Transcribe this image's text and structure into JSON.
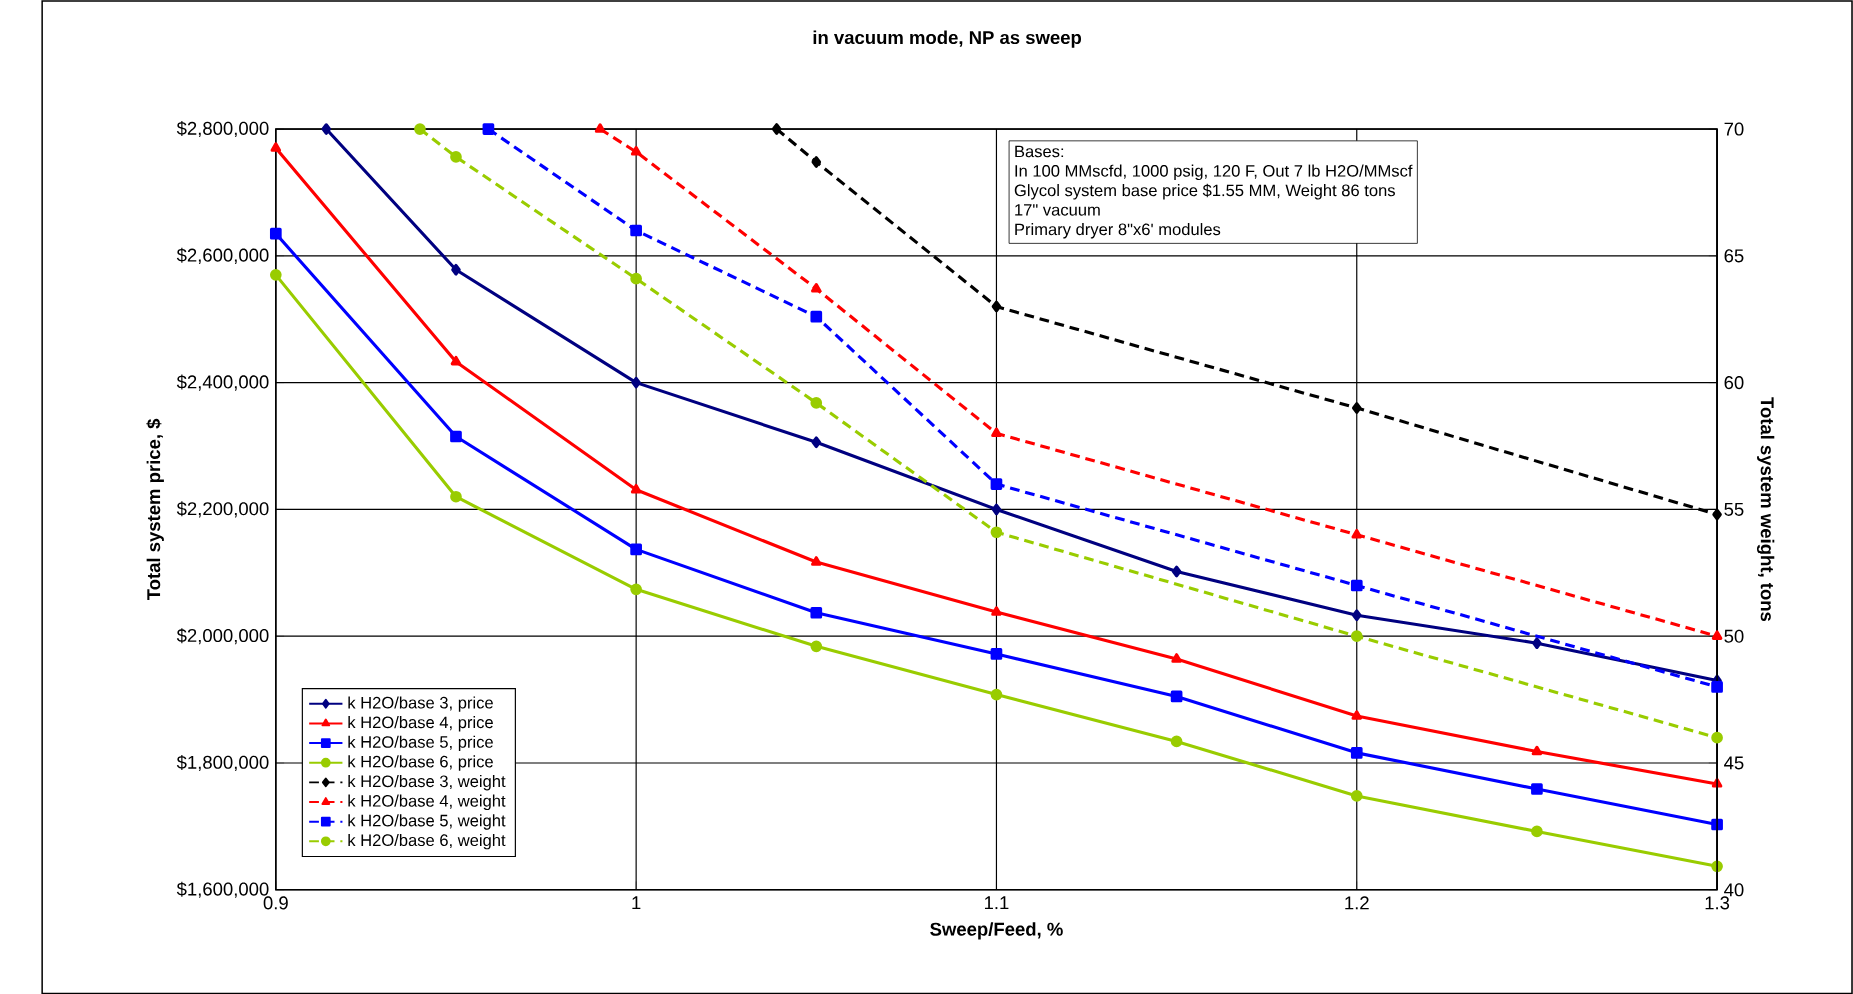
{
  "chart_data": {
    "type": "line",
    "title": "in vacuum mode, NP as sweep",
    "xlabel": "Sweep/Feed, %",
    "ylabel": "Total system price, $",
    "y2label": "Total system weight, tons",
    "xlim": [
      0.9,
      1.3
    ],
    "xticks": [
      0.9,
      1,
      1.1,
      1.2,
      1.3
    ],
    "ylim": [
      1600000,
      2800000
    ],
    "yticks": [
      {
        "value": 1600000,
        "label": "$1,600,000"
      },
      {
        "value": 1800000,
        "label": "$1,800,000"
      },
      {
        "value": 2000000,
        "label": "$2,000,000"
      },
      {
        "value": 2200000,
        "label": "$2,200,000"
      },
      {
        "value": 2400000,
        "label": "$2,400,000"
      },
      {
        "value": 2600000,
        "label": "$2,600,000"
      },
      {
        "value": 2800000,
        "label": "$2,800,000"
      }
    ],
    "y2lim": [
      40,
      70
    ],
    "y2ticks": [
      40,
      45,
      50,
      55,
      60,
      65,
      70
    ],
    "grid": true,
    "legend": "bottom left",
    "annotations": [
      "Bases:",
      "In 100 MMscfd, 1000 psig, 120 F, Out 7 lb H2O/MMscf",
      "Glycol system base price  $1.55 MM, Weight  86 tons",
      "17\" vacuum",
      "Primary dryer 8\"x6' modules"
    ],
    "series": [
      {
        "name": "k H2O/base 3, price",
        "color": "#000080",
        "marker": "diamond",
        "line_style": "solid",
        "x": [
          0.914,
          0.95,
          1.0,
          1.05,
          1.1,
          1.15,
          1.2,
          1.25,
          1.3
        ],
        "values": [
          2800000,
          2578000,
          2400000,
          2306000,
          2200000,
          2102000,
          2033000,
          1989000,
          1930000
        ]
      },
      {
        "name": "k H2O/base 4, price",
        "color": "#ff0000",
        "marker": "triangle",
        "line_style": "solid",
        "x": [
          0.9,
          0.95,
          1.0,
          1.05,
          1.1,
          1.15,
          1.2,
          1.25,
          1.3
        ],
        "values": [
          2770000,
          2433000,
          2231000,
          2117000,
          2038000,
          1964000,
          1874000,
          1818000,
          1767000
        ]
      },
      {
        "name": "k H2O/base 5, price",
        "color": "#0000ff",
        "marker": "square",
        "line_style": "solid",
        "x": [
          0.9,
          0.95,
          1.0,
          1.05,
          1.1,
          1.15,
          1.2,
          1.25,
          1.3
        ],
        "values": [
          2635000,
          2315000,
          2137000,
          2037000,
          1972000,
          1905000,
          1816000,
          1759000,
          1703000
        ]
      },
      {
        "name": "k H2O/base 6, price",
        "color": "#99cc00",
        "marker": "circle",
        "line_style": "solid",
        "x": [
          0.9,
          0.95,
          1.0,
          1.05,
          1.1,
          1.15,
          1.2,
          1.25,
          1.3
        ],
        "values": [
          2570000,
          2220000,
          2074000,
          1984000,
          1908000,
          1834000,
          1748000,
          1692000,
          1637000
        ]
      },
      {
        "name": "k H2O/base 3, weight",
        "color": "#000000",
        "marker": "diamond",
        "line_style": "dashed",
        "axis": "y2",
        "x": [
          1.039,
          1.05,
          1.1,
          1.2,
          1.3
        ],
        "values": [
          70,
          68.7,
          63,
          59,
          54.8
        ]
      },
      {
        "name": "k H2O/base 4, weight",
        "color": "#ff0000",
        "marker": "triangle",
        "line_style": "dashed",
        "axis": "y2",
        "x": [
          0.99,
          1.0,
          1.05,
          1.1,
          1.2,
          1.3
        ],
        "values": [
          70,
          69.1,
          63.7,
          58,
          54,
          50
        ]
      },
      {
        "name": "k H2O/base 5, weight",
        "color": "#0000ff",
        "marker": "square",
        "line_style": "dashed",
        "axis": "y2",
        "x": [
          0.959,
          1.0,
          1.05,
          1.1,
          1.2,
          1.3
        ],
        "values": [
          70,
          66,
          62.6,
          56,
          52,
          48
        ]
      },
      {
        "name": "k H2O/base 6, weight",
        "color": "#99cc00",
        "marker": "circle",
        "line_style": "dashed",
        "axis": "y2",
        "x": [
          0.94,
          0.95,
          1.0,
          1.05,
          1.1,
          1.2,
          1.3
        ],
        "values": [
          70,
          68.9,
          64.1,
          59.2,
          54.1,
          50,
          46
        ]
      }
    ]
  }
}
